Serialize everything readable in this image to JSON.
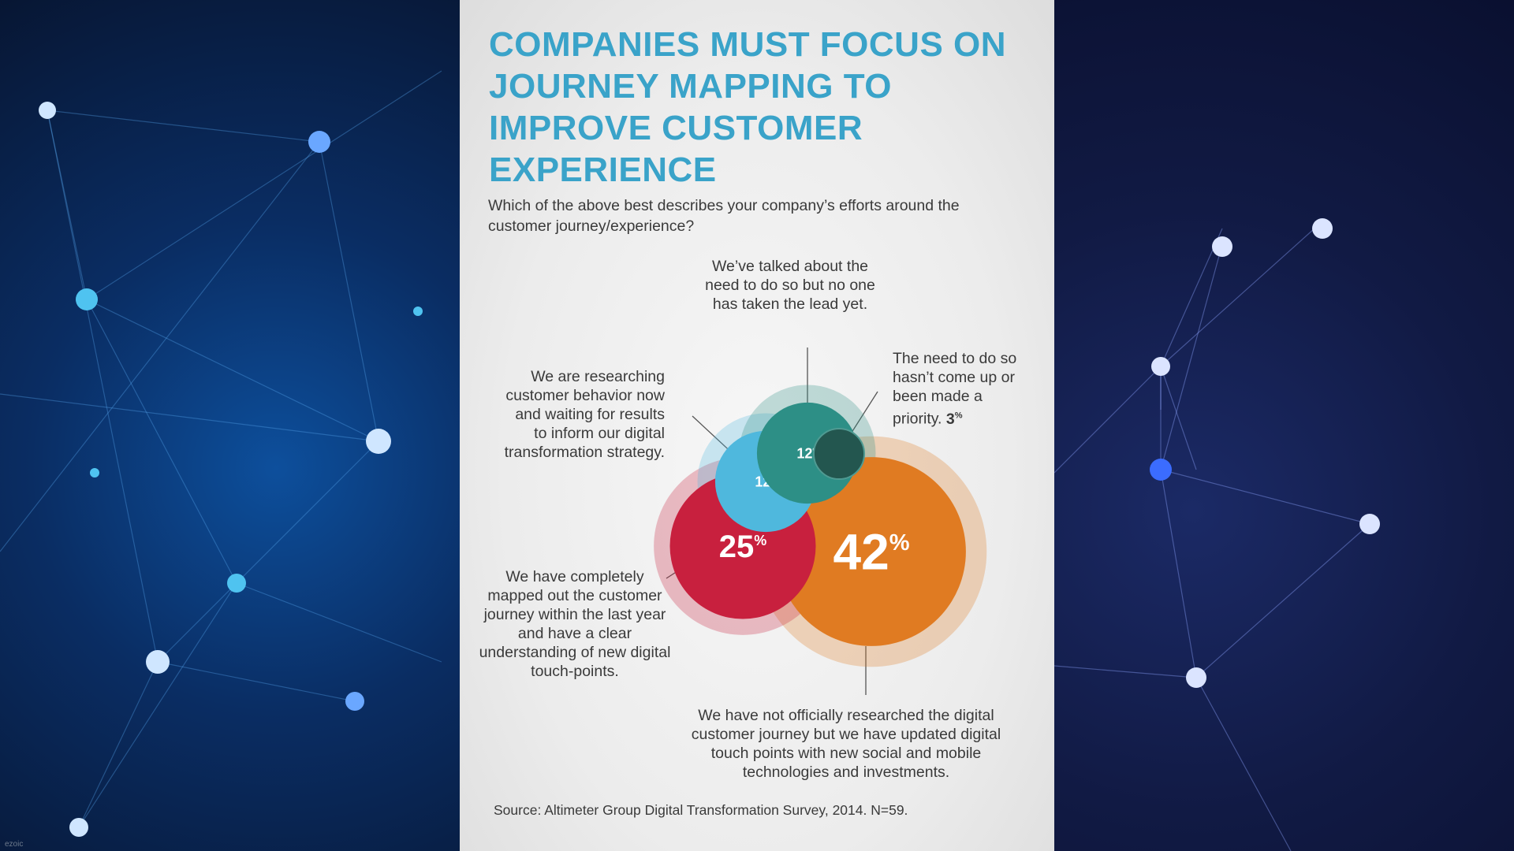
{
  "title": "COMPANIES MUST FOCUS ON JOURNEY MAPPING TO IMPROVE CUSTOMER EXPERIENCE",
  "question": "Which of the above best describes your company’s efforts around the customer journey/experience?",
  "source": "Source: Altimeter Group Digital Transformation Survey, 2014. N=59.",
  "watermark": "ezoic",
  "colors": {
    "title": "#3aa3c9",
    "orange": "#e07b22",
    "crimson": "#c8203e",
    "light_blue": "#4fb8dd",
    "teal": "#2d8f86",
    "dark_teal": "#23564f"
  },
  "chart_data": {
    "type": "bubble",
    "unit": "%",
    "series": [
      {
        "label": "We have not officially researched the digital customer journey but we have updated digital touch points with new social and mobile technologies and investments.",
        "value": 42,
        "value_text": "42",
        "color": "#e07b22"
      },
      {
        "label": "We have completely mapped out the customer journey within the last year and have a clear understanding of new digital touch-points.",
        "value": 25,
        "value_text": "25",
        "color": "#c8203e"
      },
      {
        "label": "We are researching customer behavior now and waiting for results to inform our digital transformation strategy.",
        "value": 12,
        "value_text": "12",
        "color": "#4fb8dd"
      },
      {
        "label": "We’ve talked about the need to do so but no one has taken the lead yet.",
        "value": 12,
        "value_text": "12",
        "color": "#2d8f86"
      },
      {
        "label": "The need to do so hasn’t come up or been made a priority.",
        "value": 3,
        "value_text": "3",
        "color": "#23564f"
      }
    ]
  }
}
